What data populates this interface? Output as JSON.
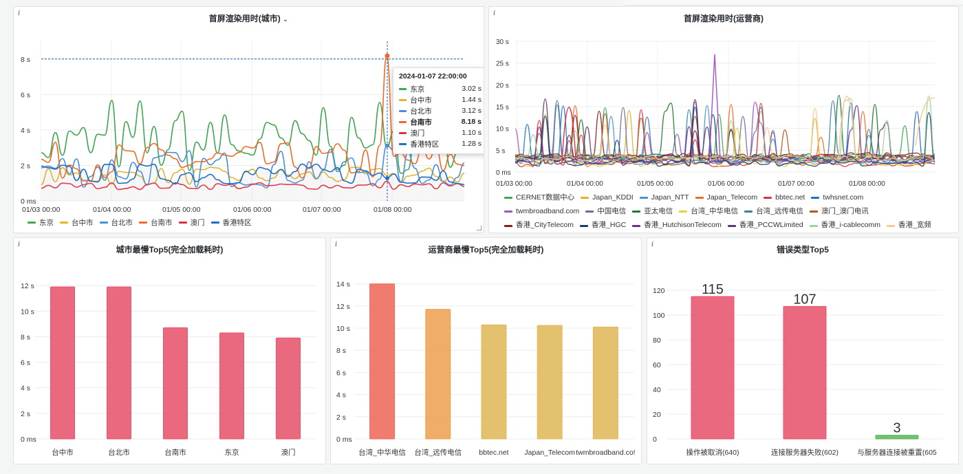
{
  "panels": {
    "city_render": {
      "title": "首屏渲染用时(城市)",
      "info_icon": "i",
      "y_ticks": [
        "8 s",
        "6 s",
        "4 s",
        "2 s",
        "0 ms"
      ],
      "x_ticks": [
        "01/03 00:00",
        "01/04 00:00",
        "01/05 00:00",
        "01/06 00:00",
        "01/07 00:00",
        "01/08 00:00"
      ],
      "legend": [
        {
          "name": "东京",
          "color": "#3fa652"
        },
        {
          "name": "台中市",
          "color": "#e0b42c"
        },
        {
          "name": "台北市",
          "color": "#4a90d9"
        },
        {
          "name": "台南市",
          "color": "#f06b27"
        },
        {
          "name": "澳门",
          "color": "#e02f44"
        },
        {
          "name": "香港特区",
          "color": "#1f6fc5"
        }
      ],
      "tooltip": {
        "time": "2024-01-07 22:00:00",
        "rows": [
          {
            "name": "东京",
            "value": "3.02 s",
            "color": "#3fa652",
            "bold": false
          },
          {
            "name": "台中市",
            "value": "1.44 s",
            "color": "#e0b42c",
            "bold": false
          },
          {
            "name": "台北市",
            "value": "3.12 s",
            "color": "#4a90d9",
            "bold": false
          },
          {
            "name": "台南市",
            "value": "8.18 s",
            "color": "#f06b27",
            "bold": true
          },
          {
            "name": "澳门",
            "value": "1.10 s",
            "color": "#e02f44",
            "bold": false
          },
          {
            "name": "香港特区",
            "value": "1.28 s",
            "color": "#1f6fc5",
            "bold": false
          }
        ]
      }
    },
    "isp_render": {
      "title": "首屏渲染用时(运营商)",
      "info_icon": "i",
      "y_ticks": [
        "30 s",
        "25 s",
        "20 s",
        "15 s",
        "10 s",
        "5 s",
        "0 ms"
      ],
      "x_ticks": [
        "01/03 00:00",
        "01/04 00:00",
        "01/05 00:00",
        "01/06 00:00",
        "01/07 00:00",
        "01/08 00:00"
      ],
      "legend_rows": [
        [
          {
            "name": "CERNET数据中心",
            "color": "#3fa652"
          },
          {
            "name": "Japan_KDDI",
            "color": "#e0b42c"
          },
          {
            "name": "Japan_NTT",
            "color": "#4a90d9"
          },
          {
            "name": "Japan_Telecom",
            "color": "#f06b27"
          },
          {
            "name": "bbtec.net",
            "color": "#e02f44"
          },
          {
            "name": "twhsnet.com",
            "color": "#1f6fc5"
          }
        ],
        [
          {
            "name": "twmbroadband.com",
            "color": "#a352cc"
          },
          {
            "name": "中国电信",
            "color": "#6d6d9c"
          },
          {
            "name": "亚太电信",
            "color": "#1a7a2e"
          },
          {
            "name": "台湾_中华电信",
            "color": "#e8d234"
          },
          {
            "name": "台湾_远传电信",
            "color": "#3b7fa8"
          },
          {
            "name": "澳门_澳门电讯",
            "color": "#b5551f"
          }
        ],
        [
          {
            "name": "香港_CityTelecom",
            "color": "#8f1a1a"
          },
          {
            "name": "香港_HGC",
            "color": "#123f6b"
          },
          {
            "name": "香港_HutchisonTelecom",
            "color": "#6b2f8c"
          },
          {
            "name": "香港_PCCWLimited",
            "color": "#5a3a6e"
          },
          {
            "name": "香港_i-cablecomm",
            "color": "#9ad39f"
          },
          {
            "name": "香港_宽频",
            "color": "#f7c98c"
          }
        ]
      ]
    },
    "city_top5": {
      "title": "城市最慢Top5(完全加载耗时)",
      "info_icon": "i",
      "chart_data": {
        "type": "bar",
        "categories": [
          "台中市",
          "台北市",
          "台南市",
          "东京",
          "澳门"
        ],
        "values": [
          11.9,
          11.9,
          8.7,
          8.3,
          7.9
        ],
        "ylim": [
          0,
          12.6
        ],
        "y_ticks": [
          "12 s",
          "10 s",
          "8 s",
          "6 s",
          "4 s",
          "2 s",
          "0 ms"
        ],
        "colors": [
          "#e8546c",
          "#e8546c",
          "#e8546c",
          "#e8546c",
          "#e8546c"
        ]
      }
    },
    "isp_top5": {
      "title": "运营商最慢Top5(完全加载耗时)",
      "info_icon": "i",
      "chart_data": {
        "type": "bar",
        "categories": [
          "台湾_中华电信",
          "台湾_远传电信",
          "bbtec.net",
          "Japan_Telecom",
          "twmbroadband.co!"
        ],
        "values": [
          14.0,
          11.7,
          10.3,
          10.25,
          10.1
        ],
        "ylim": [
          0,
          14.6
        ],
        "y_ticks": [
          "14 s",
          "12 s",
          "10 s",
          "8 s",
          "6 s",
          "4 s",
          "2 s",
          "0 ms"
        ],
        "colors": [
          "#ee6a5c",
          "#eda252",
          "#e0b85a",
          "#e0b85a",
          "#e0b85a"
        ]
      }
    },
    "error_top5": {
      "title": "错误类型Top5",
      "info_icon": "i",
      "chart_data": {
        "type": "bar",
        "categories": [
          "操作被取消(640)",
          "连接服务器失败(602)",
          "与服务器连接被重置(605"
        ],
        "values": [
          115,
          107,
          3
        ],
        "value_labels": [
          "115",
          "107",
          "3"
        ],
        "ylim": [
          0,
          130
        ],
        "y_ticks": [
          "120",
          "100",
          "80",
          "60",
          "40",
          "20",
          "0"
        ],
        "colors": [
          "#e8546c",
          "#e8546c",
          "#5cb85c"
        ]
      }
    }
  }
}
